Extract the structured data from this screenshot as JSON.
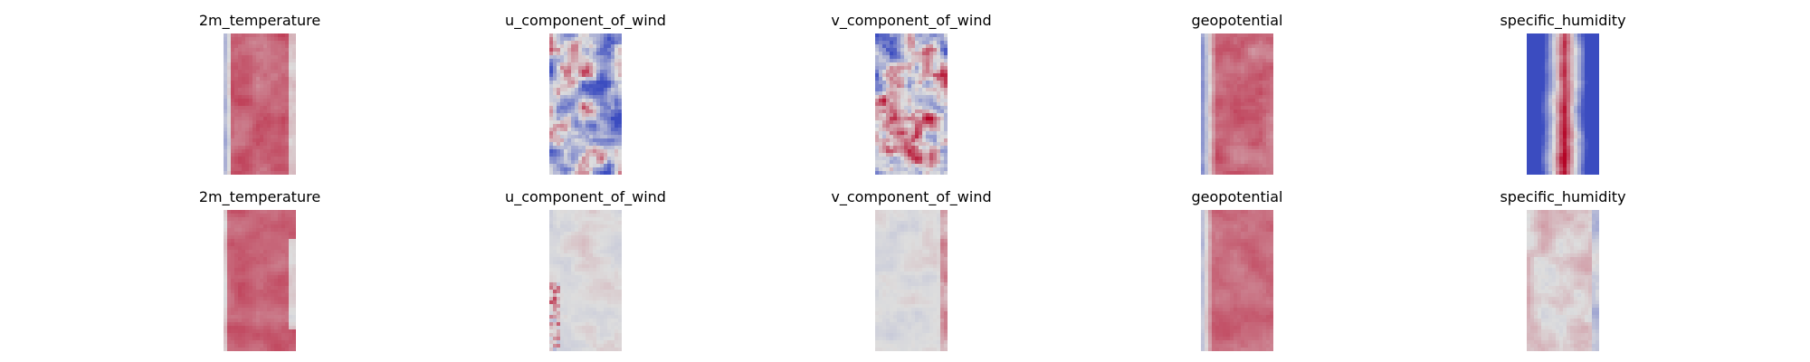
{
  "chart_data": {
    "type": "heatmap",
    "colormap": "coolwarm",
    "colors": {
      "low": "#3b4cc0",
      "mid": "#dddddd",
      "high": "#b40426"
    },
    "rows": [
      {
        "panels": [
          {
            "title": "2m_temperature",
            "pattern": "temperature"
          },
          {
            "title": "u_component_of_wind",
            "pattern": "wind_u"
          },
          {
            "title": "v_component_of_wind",
            "pattern": "wind_v"
          },
          {
            "title": "geopotential",
            "pattern": "geopotential"
          },
          {
            "title": "specific_humidity",
            "pattern": "humidity"
          }
        ]
      },
      {
        "panels": [
          {
            "title": "2m_temperature",
            "pattern": "temperature_pred"
          },
          {
            "title": "u_component_of_wind",
            "pattern": "small_residual"
          },
          {
            "title": "v_component_of_wind",
            "pattern": "small_residual_edge"
          },
          {
            "title": "geopotential",
            "pattern": "geopotential_pred"
          },
          {
            "title": "specific_humidity",
            "pattern": "humidity_residual"
          }
        ]
      }
    ]
  }
}
